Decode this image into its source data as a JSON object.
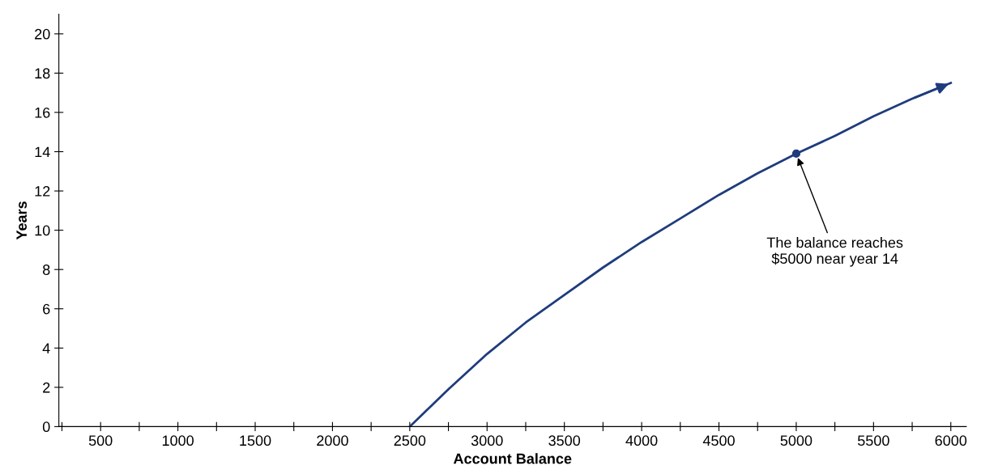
{
  "chart_data": {
    "type": "line",
    "xlabel": "Account Balance",
    "ylabel": "Years",
    "series": [
      {
        "color": "#1f3c7c",
        "x": [
          2500,
          2750,
          3000,
          3250,
          3500,
          3750,
          4000,
          4250,
          4500,
          4750,
          5000,
          5250,
          5500,
          5750,
          6000
        ],
        "values": [
          0,
          1.9,
          3.7,
          5.3,
          6.7,
          8.1,
          9.4,
          10.6,
          11.8,
          12.9,
          13.9,
          14.8,
          15.8,
          16.7,
          17.5
        ]
      },
      {
        "type": "scatter",
        "color": "#1f3c7c",
        "x": [
          5000
        ],
        "values": [
          13.9
        ],
        "marker": "circle"
      }
    ],
    "annotations": [
      {
        "text": "The balance reaches\n$5000 near year 14",
        "x": 5000,
        "y": 13.9
      }
    ],
    "xlim": [
      230,
      6100
    ],
    "ylim": [
      0,
      21
    ],
    "xticks": [
      {
        "value": 250,
        "label": null
      },
      500,
      {
        "value": 750,
        "label": null
      },
      1000,
      {
        "value": 1250,
        "label": null
      },
      1500,
      {
        "value": 1750,
        "label": null
      },
      2000,
      {
        "value": 2250,
        "label": null
      },
      2500,
      {
        "value": 2750,
        "label": null
      },
      3000,
      {
        "value": 3250,
        "label": null
      },
      3500,
      {
        "value": 3750,
        "label": null
      },
      4000,
      {
        "value": 4250,
        "label": null
      },
      4500,
      {
        "value": 4750,
        "label": null
      },
      5000,
      {
        "value": 5250,
        "label": null
      },
      5500,
      {
        "value": 5750,
        "label": null
      },
      6000
    ],
    "yticks": [
      0,
      2,
      4,
      6,
      8,
      10,
      12,
      14,
      16,
      18,
      20
    ],
    "grid": false,
    "legend": false
  }
}
